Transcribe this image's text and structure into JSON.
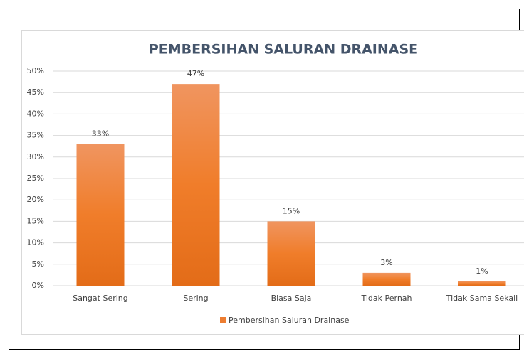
{
  "chart_data": {
    "type": "bar",
    "title": "PEMBERSIHAN SALURAN DRAINASE",
    "categories": [
      "Sangat Sering",
      "Sering",
      "Biasa Saja",
      "Tidak Pernah",
      "Tidak Sama Sekali"
    ],
    "series": [
      {
        "name": "Pembersihan Saluran Drainase",
        "color": "#ed7d31",
        "values": [
          33,
          47,
          15,
          3,
          1
        ],
        "value_labels": [
          "33%",
          "47%",
          "15%",
          "3%",
          "1%"
        ]
      }
    ],
    "ylim": [
      0,
      50
    ],
    "yticks": [
      {
        "value": 0,
        "label": "0%"
      },
      {
        "value": 5,
        "label": "5%"
      },
      {
        "value": 10,
        "label": "10%"
      },
      {
        "value": 15,
        "label": "15%"
      },
      {
        "value": 20,
        "label": "20%"
      },
      {
        "value": 25,
        "label": "25%"
      },
      {
        "value": 30,
        "label": "30%"
      },
      {
        "value": 35,
        "label": "35%"
      },
      {
        "value": 40,
        "label": "40%"
      },
      {
        "value": 45,
        "label": "45%"
      },
      {
        "value": 50,
        "label": "50%"
      }
    ],
    "grid": true,
    "legend": "bottom"
  }
}
